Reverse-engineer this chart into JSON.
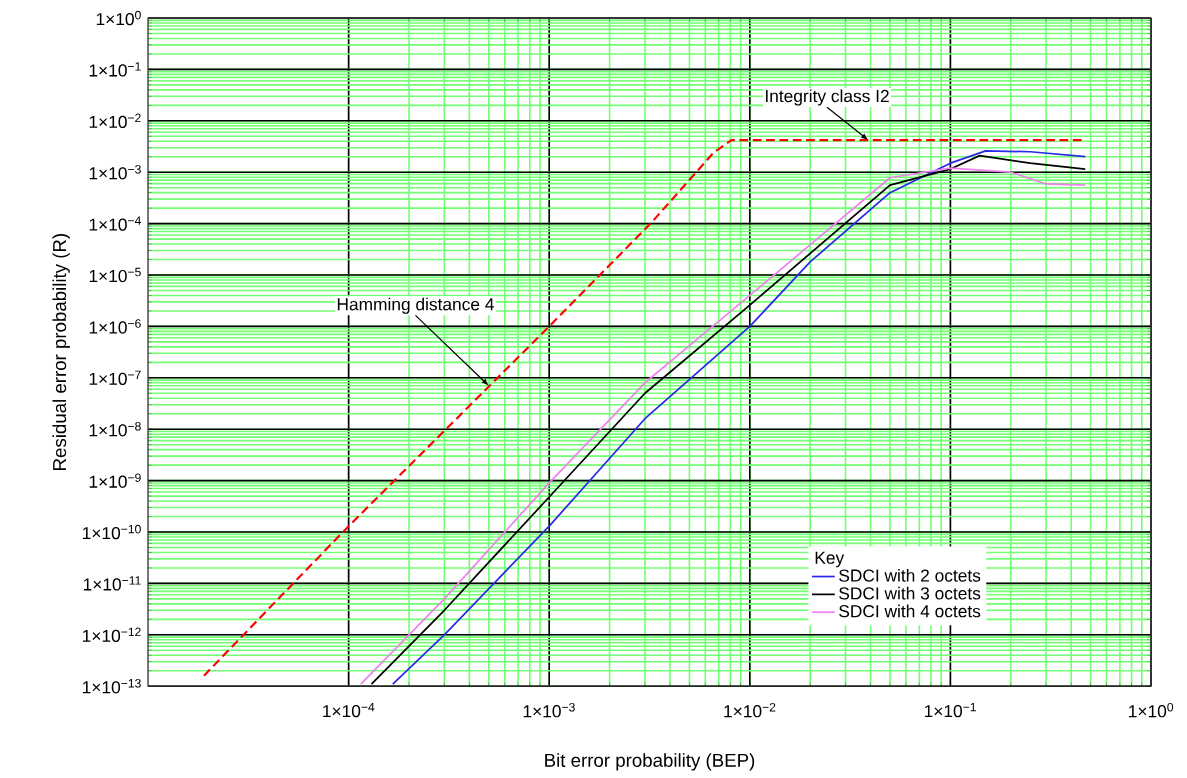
{
  "chart_data": {
    "type": "line",
    "xlabel": "Bit error probability (BEP)",
    "ylabel": "Residual error probability (R)",
    "legend_title": "Key",
    "log": "xy",
    "grid": true,
    "legend": "bottom right",
    "marker": "none",
    "xlim": [
      1e-05,
      1
    ],
    "ylim": [
      1e-13,
      1
    ],
    "xticks": [
      {
        "value": 0.0001,
        "label": "1×10$^{−4}$"
      },
      {
        "value": 0.001,
        "label": "1×10$^{−3}$"
      },
      {
        "value": 0.01,
        "label": "1×10$^{−2}$"
      },
      {
        "value": 0.1,
        "label": "1×10$^{−1}$"
      },
      {
        "value": 1,
        "label": "1×10$^{0}$"
      }
    ],
    "yticks": [
      {
        "value": 1,
        "label": "1×10$^{0}$"
      },
      {
        "value": 0.1,
        "label": "1×10$^{−1}$"
      },
      {
        "value": 0.01,
        "label": "1×10$^{−2}$"
      },
      {
        "value": 0.001,
        "label": "1×10$^{−3}$"
      },
      {
        "value": 0.0001,
        "label": "1×10$^{−4}$"
      },
      {
        "value": 1e-05,
        "label": "1×10$^{−5}$"
      },
      {
        "value": 1e-06,
        "label": "1×10$^{−6}$"
      },
      {
        "value": 1e-07,
        "label": "1×10$^{−7}$"
      },
      {
        "value": 1e-08,
        "label": "1×10$^{−8}$"
      },
      {
        "value": 1e-09,
        "label": "1×10$^{−9}$"
      },
      {
        "value": 1e-10,
        "label": "1×10$^{−10}$"
      },
      {
        "value": 1e-11,
        "label": "1×10$^{−11}$"
      },
      {
        "value": 1e-12,
        "label": "1×10$^{−12}$"
      },
      {
        "value": 1e-13,
        "label": "1×10$^{−13}$"
      }
    ],
    "series": [
      {
        "color": "#ff0000",
        "line_style": "dashed",
        "x": [
          1.9e-05,
          0.0001,
          0.001,
          0.0032,
          0.0066,
          0.0081,
          0.47
        ],
        "values": [
          1.6e-13,
          1.3e-10,
          1e-06,
          0.0001,
          0.0024,
          0.0042,
          0.0042
        ]
      },
      {
        "name": "SDCI with 2 octets",
        "color": "#2a2ae6",
        "line_style": "solid",
        "x": [
          0.000166,
          0.0003,
          0.001,
          0.003,
          0.01,
          0.02,
          0.05,
          0.1,
          0.15,
          0.25,
          0.47
        ],
        "values": [
          1.1e-13,
          1e-12,
          1.3e-10,
          1.6e-08,
          1e-06,
          1.8e-05,
          0.0004,
          0.0015,
          0.0026,
          0.0025,
          0.002
        ]
      },
      {
        "name": "SDCI with 3 octets",
        "color": "#000000",
        "line_style": "solid",
        "x": [
          0.00013,
          0.0003,
          0.001,
          0.003,
          0.01,
          0.05,
          0.1,
          0.14,
          0.25,
          0.47
        ],
        "values": [
          1.1e-13,
          3e-12,
          4.8e-10,
          5e-08,
          2.6e-06,
          0.00056,
          0.00115,
          0.0021,
          0.0015,
          0.00115
        ]
      },
      {
        "name": "SDCI with 4 octets",
        "color": "#ee82ee",
        "line_style": "solid",
        "x": [
          0.000115,
          0.0003,
          0.001,
          0.003,
          0.01,
          0.05,
          0.1,
          0.2,
          0.3,
          0.47
        ],
        "values": [
          1.1e-13,
          5e-12,
          9e-10,
          8e-08,
          4e-06,
          0.00078,
          0.0012,
          0.001,
          0.00059,
          0.00056
        ]
      }
    ],
    "annotations": [
      {
        "text": "Integrity class I2",
        "x": 0.039,
        "y": 0.0042
      },
      {
        "text": "Hamming distance 4",
        "x": 0.0005,
        "y": 7e-08
      }
    ]
  }
}
